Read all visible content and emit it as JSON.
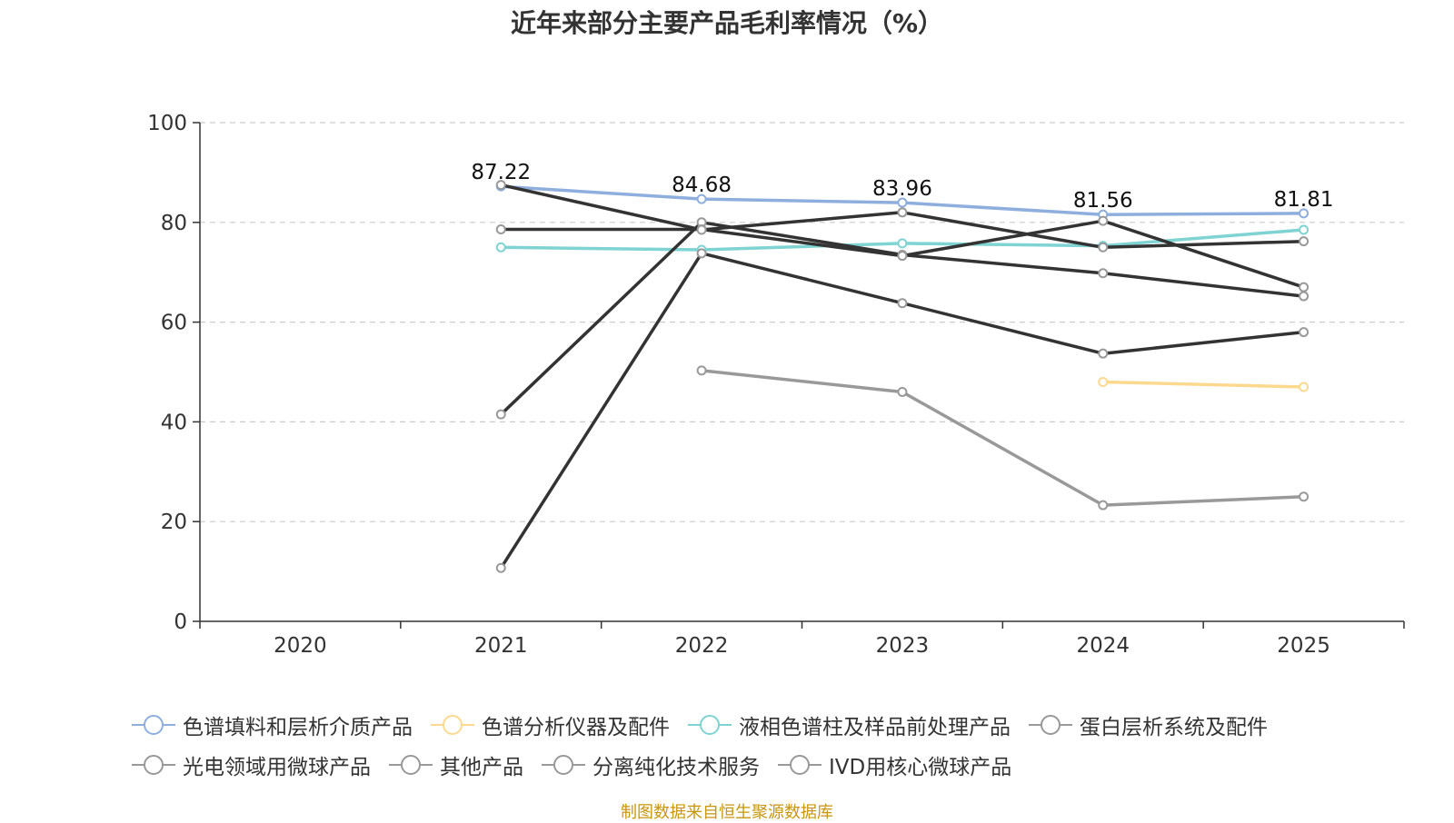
{
  "chart_data": {
    "type": "line",
    "title": "近年来部分主要产品毛利率情况（%）",
    "categories": [
      "2020",
      "2021",
      "2022",
      "2023",
      "2024",
      "2025"
    ],
    "ylim": [
      0,
      100
    ],
    "yticks": [
      0,
      20,
      40,
      60,
      80,
      100
    ],
    "grid": true,
    "legend_position": "bottom",
    "series": [
      {
        "name": "色谱填料和层析介质产品",
        "color": "#8eaede",
        "values": [
          null,
          87.22,
          84.68,
          83.96,
          81.56,
          81.81
        ],
        "show_labels": true
      },
      {
        "name": "色谱分析仪器及配件",
        "color": "#fcd98f",
        "values": [
          null,
          null,
          null,
          null,
          48,
          47
        ],
        "show_labels": false
      },
      {
        "name": "液相色谱柱及样品前处理产品",
        "color": "#7fd3d3",
        "values": [
          null,
          75,
          74.5,
          75.8,
          75.3,
          78.5
        ],
        "show_labels": false
      },
      {
        "name": "蛋白层析系统及配件",
        "color": "#333333",
        "values": [
          null,
          41.5,
          80,
          73.5,
          69.8,
          65.2
        ],
        "show_labels": false
      },
      {
        "name": "光电领域用微球产品",
        "color": "#999999",
        "values": [
          null,
          null,
          50.3,
          46,
          23.3,
          25
        ],
        "show_labels": false
      },
      {
        "name": "其他产品",
        "color": "#333333",
        "values": [
          null,
          78.6,
          78.6,
          73.3,
          80.3,
          67
        ],
        "show_labels": false
      },
      {
        "name": "分离纯化技术服务",
        "color": "#333333",
        "values": [
          null,
          10.7,
          73.8,
          63.8,
          53.7,
          58
        ],
        "show_labels": false
      },
      {
        "name": "IVD用核心微球产品",
        "color": "#333333",
        "values": [
          null,
          87.5,
          78.5,
          82,
          75,
          76.2
        ],
        "show_labels": false
      }
    ]
  },
  "legend": {
    "icon_color": "#999999",
    "rows": [
      [
        {
          "label": "色谱填料和层析介质产品",
          "color": "#8eaede"
        },
        {
          "label": "色谱分析仪器及配件",
          "color": "#fcd98f"
        },
        {
          "label": "液相色谱柱及样品前处理产品",
          "color": "#7fd3d3"
        },
        {
          "label": "蛋白层析系统及配件",
          "color": "#999999"
        }
      ],
      [
        {
          "label": "光电领域用微球产品",
          "color": "#999999"
        },
        {
          "label": "其他产品",
          "color": "#999999"
        },
        {
          "label": "分离纯化技术服务",
          "color": "#999999"
        },
        {
          "label": "IVD用核心微球产品",
          "color": "#999999"
        }
      ]
    ]
  },
  "source": "制图数据来自恒生聚源数据库"
}
